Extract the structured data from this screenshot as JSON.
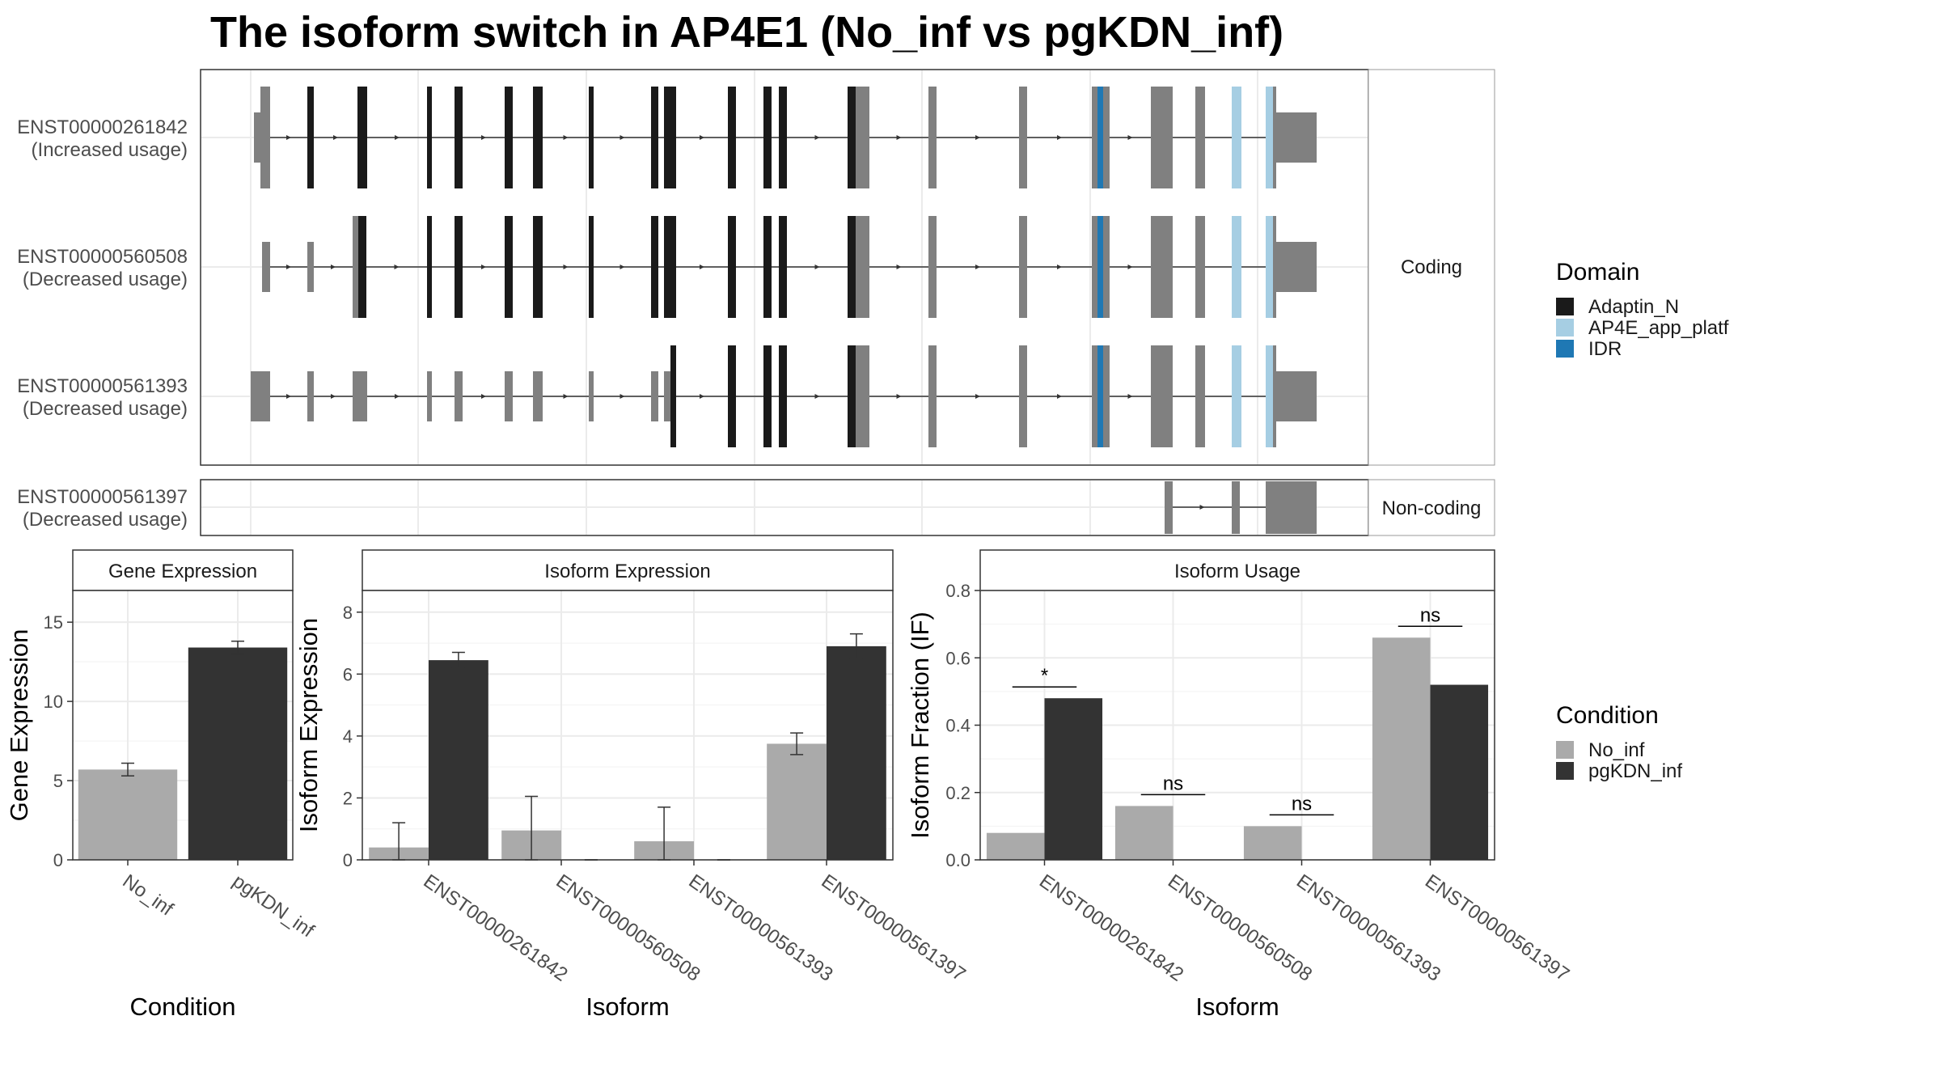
{
  "title": "The isoform switch in AP4E1 (No_inf vs pgKDN_inf)",
  "colors": {
    "utr": "#808080",
    "adaptin": "#1a1a1a",
    "ap4e": "#a6cee3",
    "idr": "#1f78b4",
    "no_inf": "#aaaaaa",
    "pgkdn_inf": "#333333",
    "grid": "#ebebeb",
    "border": "#333333"
  },
  "structure": {
    "coding_strip": "Coding",
    "noncoding_strip": "Non-coding",
    "transcripts": [
      {
        "id": "ENST00000261842",
        "status": "(Increased usage)",
        "group": "coding"
      },
      {
        "id": "ENST00000560508",
        "status": "(Decreased usage)",
        "group": "coding"
      },
      {
        "id": "ENST00000561393",
        "status": "(Decreased usage)",
        "group": "coding"
      },
      {
        "id": "ENST00000561397",
        "status": "(Decreased usage)",
        "group": "noncoding"
      }
    ]
  },
  "legend_domain": {
    "title": "Domain",
    "items": [
      {
        "label": "Adaptin_N",
        "color": "#1a1a1a"
      },
      {
        "label": "AP4E_app_platf",
        "color": "#a6cee3"
      },
      {
        "label": "IDR",
        "color": "#1f78b4"
      }
    ]
  },
  "legend_condition": {
    "title": "Condition",
    "items": [
      {
        "label": "No_inf",
        "color": "#aaaaaa"
      },
      {
        "label": "pgKDN_inf",
        "color": "#333333"
      }
    ]
  },
  "chart_data": [
    {
      "type": "bar",
      "title": "Gene Expression",
      "xlabel": "Condition",
      "ylabel": "Gene Expression",
      "categories": [
        "No_inf",
        "pgKDN_inf"
      ],
      "values": [
        5.7,
        13.4
      ],
      "errors": [
        [
          5.3,
          6.1
        ],
        [
          13.0,
          13.8
        ]
      ],
      "ylim": [
        0,
        17
      ],
      "yticks": [
        0,
        5,
        10,
        15
      ]
    },
    {
      "type": "bar",
      "title": "Isoform Expression",
      "xlabel": "Isoform",
      "ylabel": "Isoform Expression",
      "categories": [
        "ENST00000261842",
        "ENST00000560508",
        "ENST00000561393",
        "ENST00000561397"
      ],
      "series": [
        {
          "name": "No_inf",
          "values": [
            0.4,
            0.95,
            0.6,
            3.75
          ],
          "errors": [
            [
              0.0,
              1.2
            ],
            [
              0.0,
              2.05
            ],
            [
              0.0,
              1.7
            ],
            [
              3.4,
              4.1
            ]
          ]
        },
        {
          "name": "pgKDN_inf",
          "values": [
            6.45,
            0.0,
            0.0,
            6.9
          ],
          "errors": [
            [
              6.2,
              6.7
            ],
            [
              0.0,
              0.0
            ],
            [
              0.0,
              0.0
            ],
            [
              6.5,
              7.3
            ]
          ]
        }
      ],
      "ylim": [
        0,
        8.7
      ],
      "yticks": [
        0,
        2,
        4,
        6,
        8
      ]
    },
    {
      "type": "bar",
      "title": "Isoform Usage",
      "xlabel": "Isoform",
      "ylabel": "Isoform Fraction (IF)",
      "categories": [
        "ENST00000261842",
        "ENST00000560508",
        "ENST00000561393",
        "ENST00000561397"
      ],
      "series": [
        {
          "name": "No_inf",
          "values": [
            0.08,
            0.16,
            0.1,
            0.66
          ]
        },
        {
          "name": "pgKDN_inf",
          "values": [
            0.48,
            0.0,
            0.0,
            0.52
          ]
        }
      ],
      "significance": [
        "*",
        "ns",
        "ns",
        "ns"
      ],
      "ylim": [
        0,
        0.8
      ],
      "yticks": [
        0.0,
        0.2,
        0.4,
        0.6,
        0.8
      ]
    }
  ]
}
